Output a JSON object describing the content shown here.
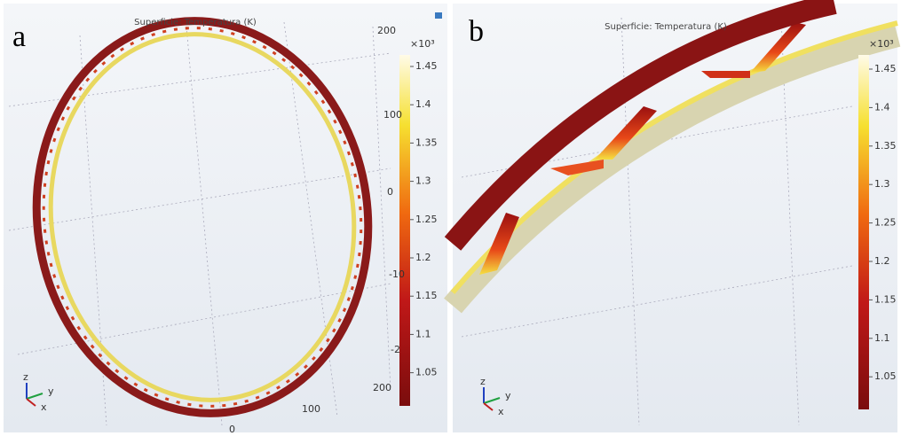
{
  "panels": [
    {
      "label": "a",
      "title": "Superficie: Temperatura (K)",
      "colorbar": {
        "exponent": "×10³",
        "ticks": [
          1.45,
          1.4,
          1.35,
          1.3,
          1.25,
          1.2,
          1.15,
          1.1,
          1.05
        ]
      },
      "axis_labels": [
        "200",
        "100",
        "0",
        "-10",
        "-2",
        "200",
        "100",
        "0"
      ],
      "triad": [
        "z",
        "y",
        "x"
      ]
    },
    {
      "label": "b",
      "title": "Superficie: Temperatura (K)",
      "colorbar": {
        "exponent": "×10³",
        "ticks": [
          1.45,
          1.4,
          1.35,
          1.3,
          1.25,
          1.2,
          1.15,
          1.1,
          1.05
        ]
      },
      "triad": [
        "z",
        "y",
        "x"
      ]
    }
  ]
}
